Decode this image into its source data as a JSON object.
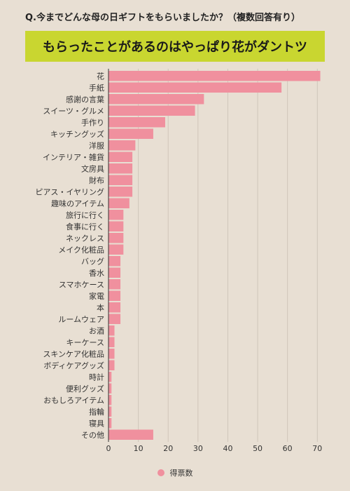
{
  "question": "Q.今までどんな母の日ギフトをもらいましたか？（複数回答有り）",
  "banner": "もらったことがあるのはやっぱり花がダントツ",
  "colors": {
    "bar": "#f0909e",
    "banner": "#c9d630",
    "background": "#e8dfd3"
  },
  "chart_data": {
    "type": "bar",
    "orientation": "horizontal",
    "categories": [
      "花",
      "手紙",
      "感謝の言葉",
      "スイーツ・グルメ",
      "手作り",
      "キッチングッズ",
      "洋服",
      "インテリア・雑貨",
      "文房具",
      "財布",
      "ピアス・イヤリング",
      "趣味のアイテム",
      "旅行に行く",
      "食事に行く",
      "ネックレス",
      "メイク化粧品",
      "バッグ",
      "香水",
      "スマホケース",
      "家電",
      "本",
      "ルームウェア",
      "お酒",
      "キーケース",
      "スキンケア化粧品",
      "ボディケアグッズ",
      "時計",
      "便利グッズ",
      "おもしろアイテム",
      "指輪",
      "寝具",
      "その他"
    ],
    "series": [
      {
        "name": "得票数",
        "values": [
          71,
          58,
          32,
          29,
          19,
          15,
          9,
          8,
          8,
          8,
          8,
          7,
          5,
          5,
          5,
          5,
          4,
          4,
          4,
          4,
          4,
          4,
          2,
          2,
          2,
          2,
          1,
          1,
          1,
          1,
          1,
          15
        ]
      }
    ],
    "xlim": [
      0,
      70
    ],
    "xticks": [
      0,
      10,
      20,
      30,
      40,
      50,
      60,
      70
    ],
    "grid": true,
    "legend": "bottom-center"
  }
}
